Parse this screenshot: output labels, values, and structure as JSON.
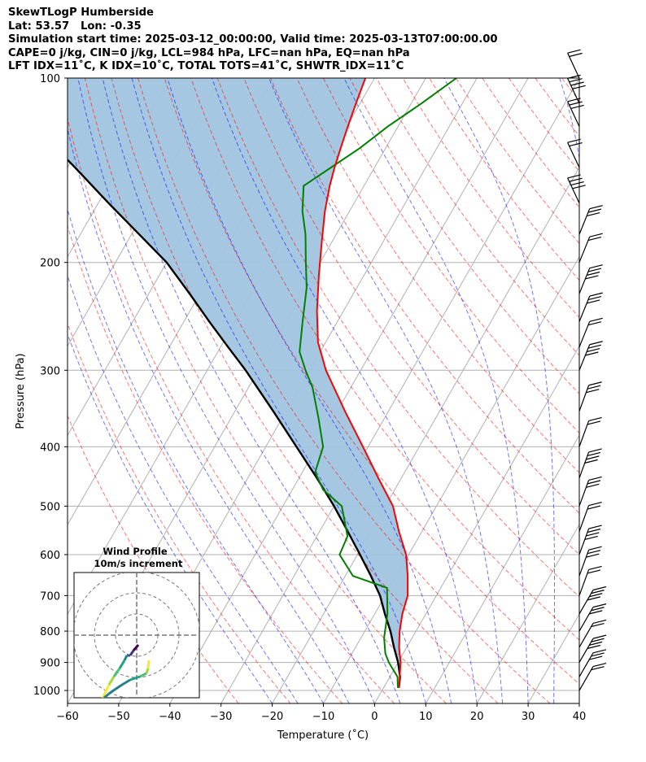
{
  "header": {
    "line1": "SkewTLogP Humberside",
    "line2": "Lat: 53.57   Lon: -0.35",
    "line3": "Simulation start time: 2025-03-12_00:00:00, Valid time: 2025-03-13T07:00:00.00",
    "line4": "CAPE=0 j/kg, CIN=0 j/kg, LCL=984 hPa, LFC=nan hPa, EQ=nan hPa",
    "line5": "LFT IDX=11˚C, K IDX=10˚C, TOTAL TOTS=41˚C, SHWTR_IDX=11˚C"
  },
  "chart_data": {
    "type": "line",
    "xlabel": "Temperature (˚C)",
    "ylabel": "Pressure (hPa)",
    "xlim": [
      -60,
      40
    ],
    "ylim": [
      1050,
      100
    ],
    "y_scale": "log",
    "x_ticks": [
      -60,
      -50,
      -40,
      -30,
      -20,
      -10,
      0,
      10,
      20,
      30,
      40
    ],
    "x_tick_labels": [
      "−60",
      "−50",
      "−40",
      "−30",
      "−20",
      "−10",
      "0",
      "10",
      "20",
      "30",
      "40"
    ],
    "y_ticks": [
      1000,
      900,
      800,
      700,
      600,
      500,
      400,
      300,
      200,
      100
    ],
    "grid": true,
    "series": [
      {
        "role": "temperature",
        "color": "#ff0000",
        "points": [
          [
            3.0,
            990
          ],
          [
            2.2,
            960
          ],
          [
            0.5,
            900
          ],
          [
            -1.5,
            850
          ],
          [
            -3.2,
            800
          ],
          [
            -4.6,
            750
          ],
          [
            -5.6,
            700
          ],
          [
            -7.8,
            650
          ],
          [
            -10.5,
            600
          ],
          [
            -14.5,
            550
          ],
          [
            -18.5,
            500
          ],
          [
            -24.5,
            450
          ],
          [
            -31.0,
            400
          ],
          [
            -38.5,
            350
          ],
          [
            -46.8,
            300
          ],
          [
            -51.5,
            270
          ],
          [
            -55.2,
            240
          ],
          [
            -58.8,
            210
          ],
          [
            -62.0,
            185
          ],
          [
            -64.8,
            165
          ],
          [
            -66.7,
            150
          ],
          [
            -67.8,
            140
          ],
          [
            -68.8,
            130
          ],
          [
            -69.8,
            120
          ],
          [
            -70.8,
            110
          ],
          [
            -71.8,
            100
          ]
        ]
      },
      {
        "role": "dewpoint",
        "color": "#008000",
        "points": [
          [
            2.8,
            990
          ],
          [
            1.5,
            950
          ],
          [
            -1.8,
            900
          ],
          [
            -3.5,
            870
          ],
          [
            -5.5,
            820
          ],
          [
            -7.5,
            750
          ],
          [
            -10.5,
            680
          ],
          [
            -18.5,
            650
          ],
          [
            -23.5,
            600
          ],
          [
            -24.0,
            560
          ],
          [
            -28.5,
            500
          ],
          [
            -34.0,
            470
          ],
          [
            -37.5,
            440
          ],
          [
            -38.8,
            400
          ],
          [
            -42.8,
            360
          ],
          [
            -47.5,
            320
          ],
          [
            -50.8,
            300
          ],
          [
            -54.0,
            280
          ],
          [
            -56.8,
            250
          ],
          [
            -59.8,
            220
          ],
          [
            -62.8,
            200
          ],
          [
            -66.0,
            180
          ],
          [
            -69.2,
            165
          ],
          [
            -71.8,
            150
          ],
          [
            -68.5,
            140
          ],
          [
            -65.0,
            130
          ],
          [
            -62.0,
            120
          ],
          [
            -58.0,
            110
          ],
          [
            -54.0,
            100
          ]
        ]
      },
      {
        "role": "parcel",
        "color": "#000000",
        "points": [
          [
            3.0,
            990
          ],
          [
            2.0,
            950
          ],
          [
            0.0,
            900
          ],
          [
            -2.5,
            850
          ],
          [
            -5.0,
            800
          ],
          [
            -8.0,
            750
          ],
          [
            -11.0,
            700
          ],
          [
            -15.0,
            650
          ],
          [
            -19.5,
            600
          ],
          [
            -24.5,
            550
          ],
          [
            -30.0,
            500
          ],
          [
            -36.5,
            450
          ],
          [
            -44.0,
            400
          ],
          [
            -52.5,
            350
          ],
          [
            -62.5,
            300
          ],
          [
            -68.5,
            275
          ],
          [
            -75.0,
            250
          ],
          [
            -82.0,
            225
          ],
          [
            -90.0,
            200
          ],
          [
            -98.5,
            180
          ],
          [
            -108.0,
            160
          ],
          [
            -118.5,
            140
          ],
          [
            -131.0,
            120
          ],
          [
            -145.5,
            100
          ]
        ]
      }
    ],
    "skew_isotherms": true,
    "dry_adiabats": {
      "color": "#ff0000",
      "style": "dashed"
    },
    "moist_adiabats": {
      "color": "#0000ff",
      "style": "dashed"
    },
    "cape_shading_color": "#a0c4df",
    "wind_barbs_side": "right",
    "inset": {
      "title_line1": "Wind Profile",
      "title_line2": "10m/s increment",
      "colormap": "viridis"
    }
  }
}
